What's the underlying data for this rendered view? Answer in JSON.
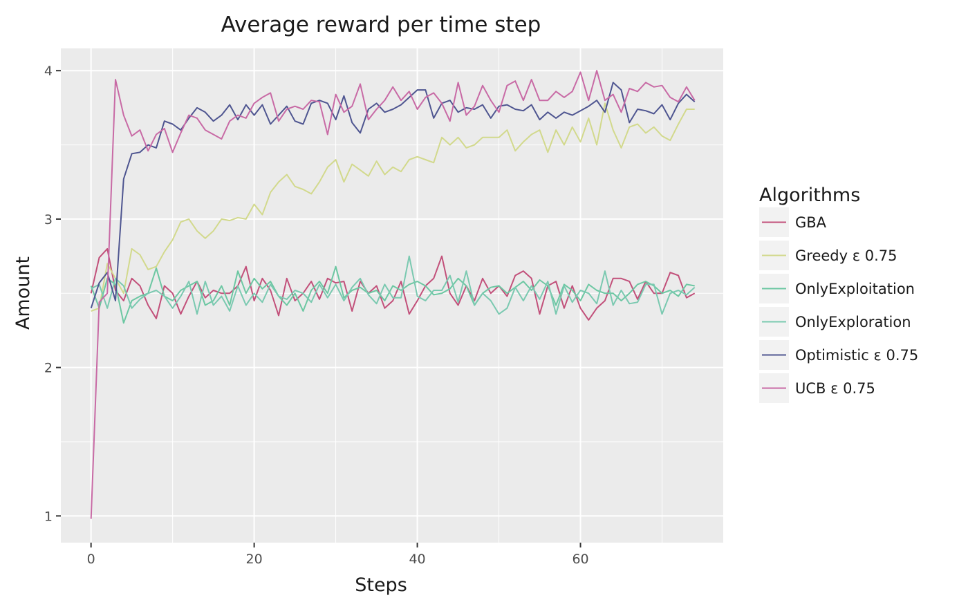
{
  "chart_data": {
    "type": "line",
    "title": "Average reward per time step",
    "xlabel": "Steps",
    "ylabel": "Amount",
    "xlim": [
      -3.7,
      77.5
    ],
    "ylim": [
      0.82,
      4.15
    ],
    "x_ticks": [
      0,
      20,
      40,
      60
    ],
    "y_ticks": [
      1,
      2,
      3,
      4
    ],
    "grid": true,
    "legend_position": "right",
    "legend_title": "Algorithms",
    "panel_background": "#ebebeb",
    "series": [
      {
        "name": "GBA",
        "color": "#c2507a",
        "values": [
          2.5,
          2.74,
          2.8,
          2.52,
          2.45,
          2.6,
          2.55,
          2.42,
          2.33,
          2.55,
          2.5,
          2.36,
          2.48,
          2.58,
          2.47,
          2.52,
          2.5,
          2.5,
          2.55,
          2.68,
          2.45,
          2.6,
          2.52,
          2.35,
          2.6,
          2.45,
          2.5,
          2.58,
          2.46,
          2.6,
          2.57,
          2.58,
          2.38,
          2.58,
          2.5,
          2.55,
          2.4,
          2.45,
          2.58,
          2.36,
          2.45,
          2.55,
          2.6,
          2.75,
          2.5,
          2.42,
          2.55,
          2.45,
          2.6,
          2.5,
          2.55,
          2.48,
          2.62,
          2.65,
          2.6,
          2.36,
          2.55,
          2.58,
          2.4,
          2.55,
          2.4,
          2.32,
          2.4,
          2.45,
          2.6,
          2.6,
          2.58,
          2.46,
          2.58,
          2.5,
          2.5,
          2.64,
          2.62,
          2.47,
          2.5
        ]
      },
      {
        "name": "Greedy ε 0.75",
        "color": "#d2d98c",
        "values": [
          2.38,
          2.4,
          2.7,
          2.6,
          2.5,
          2.8,
          2.76,
          2.66,
          2.68,
          2.78,
          2.86,
          2.98,
          3.0,
          2.92,
          2.87,
          2.92,
          3.0,
          2.99,
          3.01,
          3.0,
          3.1,
          3.03,
          3.18,
          3.25,
          3.3,
          3.22,
          3.2,
          3.17,
          3.25,
          3.35,
          3.4,
          3.25,
          3.37,
          3.33,
          3.29,
          3.39,
          3.3,
          3.35,
          3.32,
          3.4,
          3.42,
          3.4,
          3.38,
          3.55,
          3.5,
          3.55,
          3.48,
          3.5,
          3.55,
          3.55,
          3.55,
          3.6,
          3.46,
          3.52,
          3.57,
          3.6,
          3.45,
          3.6,
          3.5,
          3.62,
          3.52,
          3.68,
          3.5,
          3.78,
          3.6,
          3.48,
          3.62,
          3.64,
          3.58,
          3.62,
          3.56,
          3.53,
          3.64,
          3.74,
          3.74
        ]
      },
      {
        "name": "OnlyExploitation",
        "color": "#6cc7a2",
        "values": [
          2.55,
          2.4,
          2.6,
          2.56,
          2.3,
          2.45,
          2.48,
          2.5,
          2.67,
          2.48,
          2.45,
          2.52,
          2.55,
          2.58,
          2.42,
          2.45,
          2.55,
          2.42,
          2.65,
          2.5,
          2.6,
          2.53,
          2.58,
          2.48,
          2.42,
          2.5,
          2.38,
          2.52,
          2.58,
          2.5,
          2.68,
          2.47,
          2.52,
          2.54,
          2.5,
          2.52,
          2.45,
          2.55,
          2.52,
          2.56,
          2.58,
          2.55,
          2.49,
          2.5,
          2.53,
          2.6,
          2.55,
          2.42,
          2.5,
          2.54,
          2.55,
          2.5,
          2.54,
          2.58,
          2.52,
          2.59,
          2.55,
          2.42,
          2.56,
          2.52,
          2.45,
          2.56,
          2.52,
          2.5,
          2.5,
          2.45,
          2.5,
          2.56,
          2.58,
          2.55,
          2.5,
          2.52,
          2.48,
          2.56,
          2.55
        ]
      },
      {
        "name": "OnlyExploration",
        "color": "#7ac9b0",
        "values": [
          2.53,
          2.56,
          2.4,
          2.6,
          2.55,
          2.4,
          2.46,
          2.5,
          2.52,
          2.48,
          2.4,
          2.48,
          2.58,
          2.36,
          2.58,
          2.42,
          2.48,
          2.38,
          2.55,
          2.42,
          2.5,
          2.44,
          2.56,
          2.48,
          2.46,
          2.52,
          2.5,
          2.44,
          2.56,
          2.47,
          2.56,
          2.45,
          2.54,
          2.6,
          2.49,
          2.43,
          2.56,
          2.47,
          2.47,
          2.75,
          2.48,
          2.45,
          2.52,
          2.52,
          2.62,
          2.44,
          2.65,
          2.42,
          2.5,
          2.45,
          2.36,
          2.4,
          2.54,
          2.45,
          2.55,
          2.46,
          2.58,
          2.36,
          2.55,
          2.44,
          2.52,
          2.5,
          2.43,
          2.65,
          2.42,
          2.52,
          2.43,
          2.44,
          2.56,
          2.56,
          2.36,
          2.5,
          2.52,
          2.49,
          2.54
        ]
      },
      {
        "name": "Optimistic ε 0.75",
        "color": "#4e5590",
        "values": [
          2.4,
          2.57,
          2.64,
          2.45,
          3.27,
          3.44,
          3.45,
          3.5,
          3.48,
          3.66,
          3.64,
          3.6,
          3.68,
          3.75,
          3.72,
          3.66,
          3.7,
          3.77,
          3.67,
          3.77,
          3.7,
          3.77,
          3.64,
          3.7,
          3.76,
          3.66,
          3.64,
          3.78,
          3.8,
          3.78,
          3.67,
          3.83,
          3.65,
          3.58,
          3.74,
          3.78,
          3.72,
          3.74,
          3.77,
          3.82,
          3.87,
          3.87,
          3.68,
          3.78,
          3.8,
          3.72,
          3.75,
          3.74,
          3.77,
          3.68,
          3.76,
          3.77,
          3.74,
          3.73,
          3.77,
          3.67,
          3.72,
          3.68,
          3.72,
          3.7,
          3.73,
          3.76,
          3.8,
          3.72,
          3.92,
          3.87,
          3.65,
          3.74,
          3.73,
          3.71,
          3.77,
          3.67,
          3.78,
          3.84,
          3.79
        ]
      },
      {
        "name": "UCB ε 0.75",
        "color": "#c86aa5",
        "values": [
          0.98,
          2.44,
          2.5,
          3.94,
          3.7,
          3.56,
          3.6,
          3.46,
          3.57,
          3.61,
          3.45,
          3.58,
          3.7,
          3.68,
          3.6,
          3.57,
          3.54,
          3.66,
          3.7,
          3.68,
          3.78,
          3.82,
          3.85,
          3.66,
          3.74,
          3.76,
          3.74,
          3.8,
          3.79,
          3.57,
          3.84,
          3.72,
          3.76,
          3.91,
          3.67,
          3.74,
          3.8,
          3.89,
          3.8,
          3.86,
          3.74,
          3.82,
          3.85,
          3.78,
          3.66,
          3.92,
          3.7,
          3.76,
          3.9,
          3.8,
          3.72,
          3.9,
          3.93,
          3.8,
          3.94,
          3.8,
          3.8,
          3.86,
          3.82,
          3.86,
          3.99,
          3.8,
          4.0,
          3.8,
          3.84,
          3.72,
          3.88,
          3.86,
          3.92,
          3.89,
          3.9,
          3.82,
          3.79,
          3.89,
          3.8
        ]
      }
    ]
  }
}
